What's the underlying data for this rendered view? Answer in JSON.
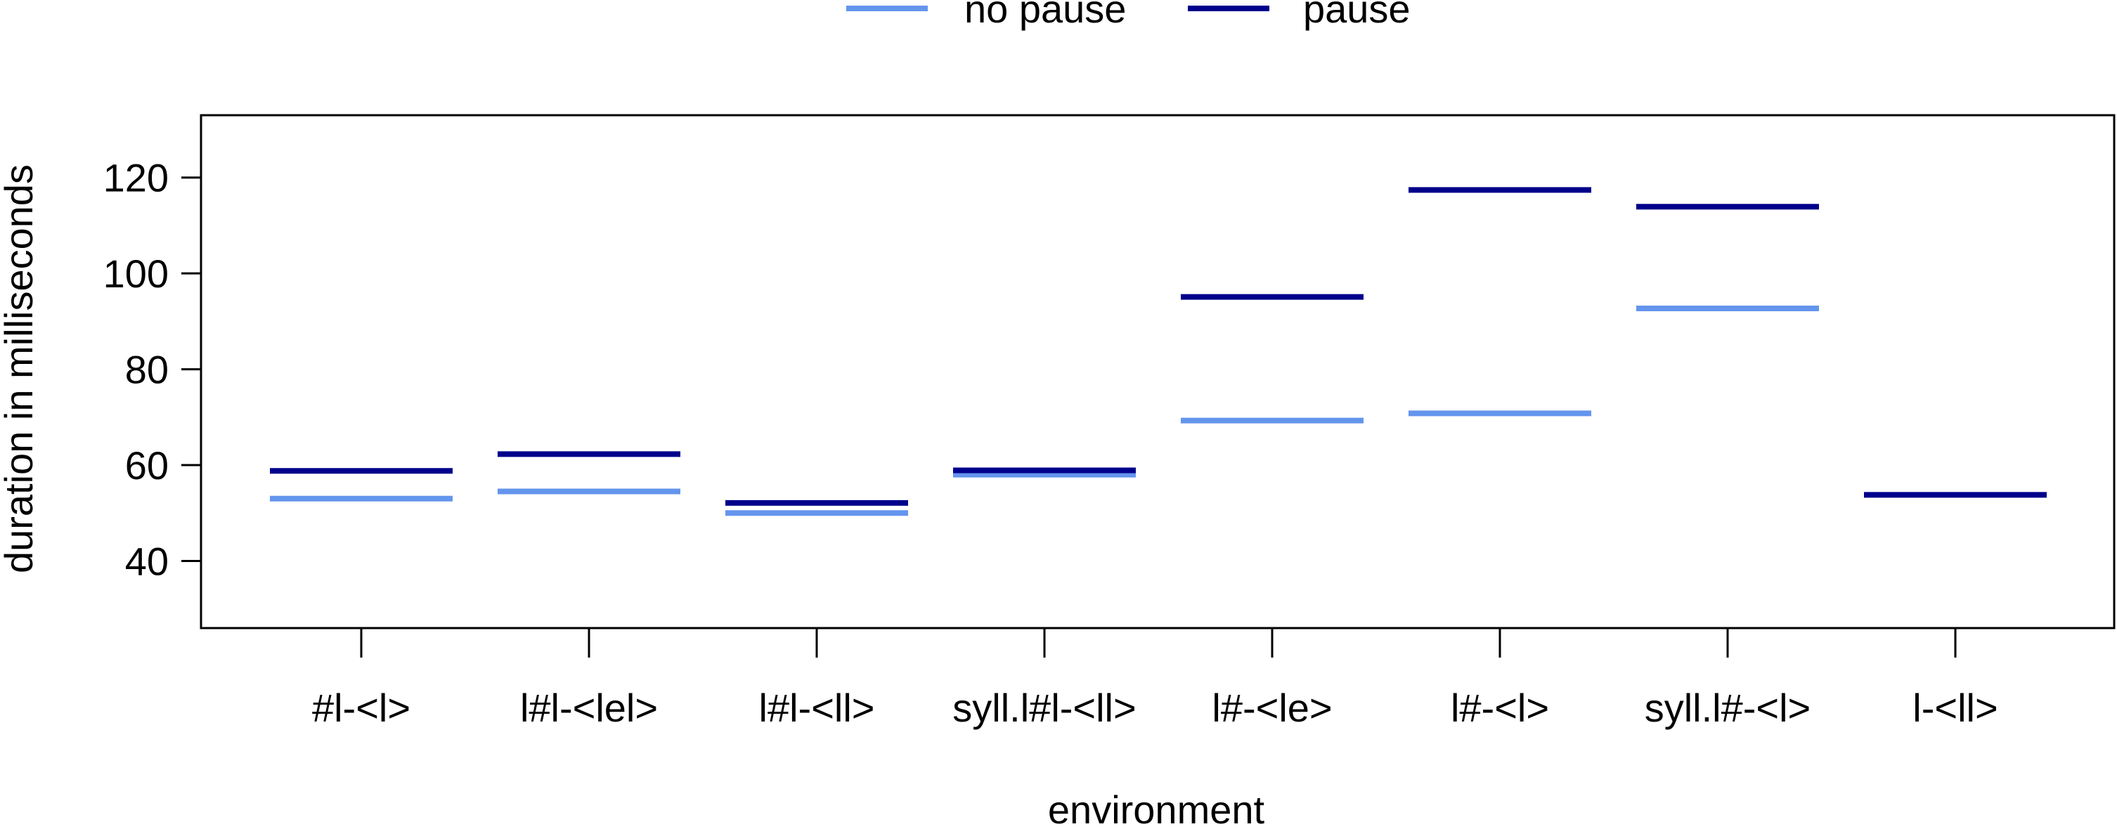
{
  "chart_data": {
    "type": "line",
    "title": "",
    "xlabel": "environment",
    "ylabel": "duration in milliseconds",
    "categories": [
      "#l-<l>",
      "l#l-<lel>",
      "l#l-<ll>",
      "syll.l#l-<ll>",
      "l#-<le>",
      "l#-<l>",
      "syll.l#-<l>",
      "l-<ll>"
    ],
    "ylim": [
      26,
      133
    ],
    "yticks": [
      40,
      60,
      80,
      100,
      120
    ],
    "grid": false,
    "legend": {
      "placement": "top-center",
      "entries": [
        {
          "label": "no pause",
          "color": "#6495ED"
        },
        {
          "label": "pause",
          "color": "#00008B"
        }
      ]
    },
    "series": [
      {
        "name": "no pause",
        "color": "#6495ED",
        "values": [
          53,
          54.5,
          50,
          58,
          69.3,
          70.8,
          92.7,
          53.8
        ]
      },
      {
        "name": "pause",
        "color": "#00008B",
        "values": [
          58.8,
          62.3,
          52.1,
          58.9,
          95.1,
          117.4,
          113.9,
          53.8
        ]
      }
    ]
  }
}
